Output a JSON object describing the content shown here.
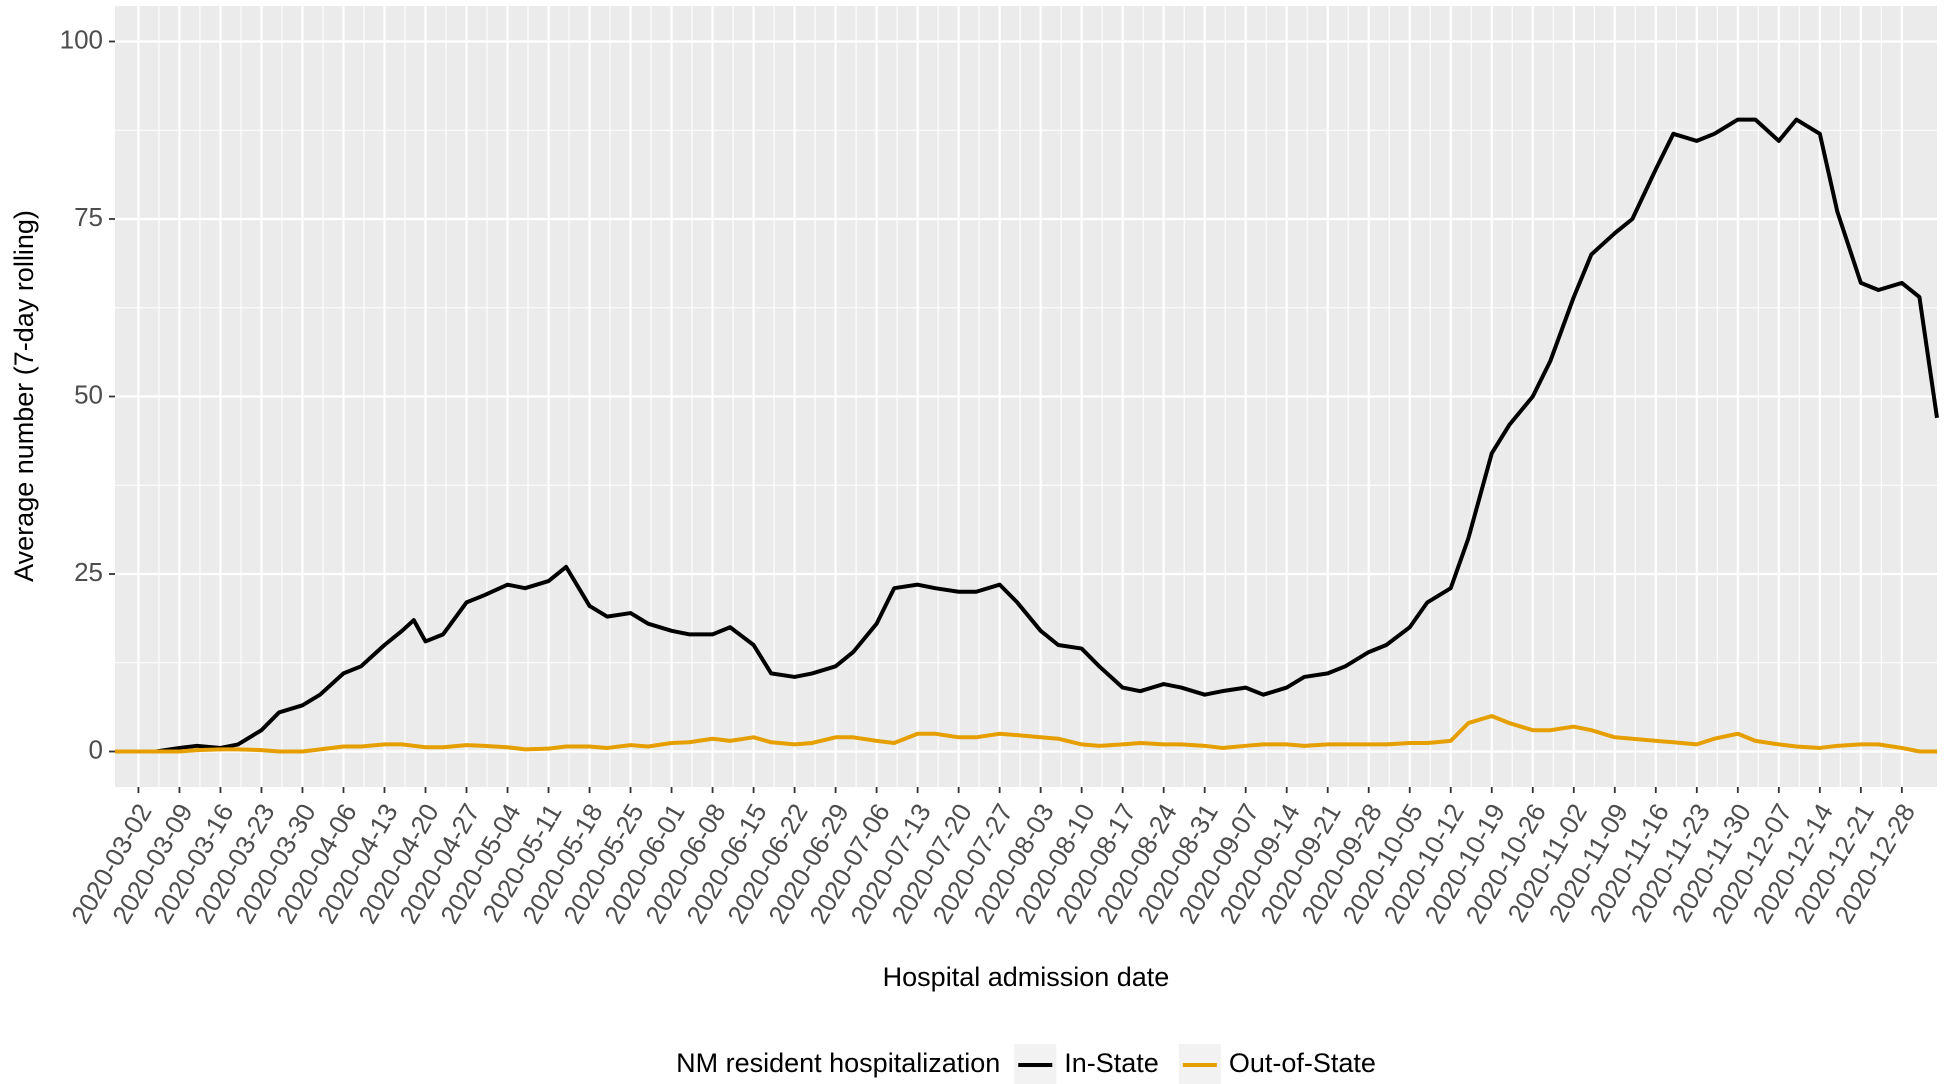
{
  "chart_data": {
    "type": "line",
    "x_label": "Hospital admission date",
    "y_label": "Average number (7-day rolling)",
    "legend_title": "NM resident hospitalization",
    "legend_position": "bottom",
    "grid": true,
    "xlim": [
      "2020-02-27",
      "2021-01-03"
    ],
    "ylim": [
      -5,
      105
    ],
    "yticks": [
      0,
      25,
      50,
      75,
      100
    ],
    "xticks": [
      "2020-03-02",
      "2020-03-09",
      "2020-03-16",
      "2020-03-23",
      "2020-03-30",
      "2020-04-06",
      "2020-04-13",
      "2020-04-20",
      "2020-04-27",
      "2020-05-04",
      "2020-05-11",
      "2020-05-18",
      "2020-05-25",
      "2020-06-01",
      "2020-06-08",
      "2020-06-15",
      "2020-06-22",
      "2020-06-29",
      "2020-07-06",
      "2020-07-13",
      "2020-07-20",
      "2020-07-27",
      "2020-08-03",
      "2020-08-10",
      "2020-08-17",
      "2020-08-24",
      "2020-08-31",
      "2020-09-07",
      "2020-09-14",
      "2020-09-21",
      "2020-09-28",
      "2020-10-05",
      "2020-10-12",
      "2020-10-19",
      "2020-10-26",
      "2020-11-02",
      "2020-11-09",
      "2020-11-16",
      "2020-11-23",
      "2020-11-30",
      "2020-12-07",
      "2020-12-14",
      "2020-12-21",
      "2020-12-28"
    ],
    "x": [
      "2020-02-27",
      "2020-03-02",
      "2020-03-05",
      "2020-03-09",
      "2020-03-12",
      "2020-03-16",
      "2020-03-19",
      "2020-03-23",
      "2020-03-26",
      "2020-03-30",
      "2020-04-02",
      "2020-04-06",
      "2020-04-09",
      "2020-04-13",
      "2020-04-16",
      "2020-04-18",
      "2020-04-20",
      "2020-04-23",
      "2020-04-27",
      "2020-04-30",
      "2020-05-04",
      "2020-05-07",
      "2020-05-11",
      "2020-05-14",
      "2020-05-18",
      "2020-05-21",
      "2020-05-25",
      "2020-05-28",
      "2020-06-01",
      "2020-06-04",
      "2020-06-08",
      "2020-06-11",
      "2020-06-15",
      "2020-06-18",
      "2020-06-22",
      "2020-06-25",
      "2020-06-29",
      "2020-07-02",
      "2020-07-06",
      "2020-07-09",
      "2020-07-13",
      "2020-07-16",
      "2020-07-20",
      "2020-07-23",
      "2020-07-27",
      "2020-07-30",
      "2020-08-03",
      "2020-08-06",
      "2020-08-10",
      "2020-08-13",
      "2020-08-17",
      "2020-08-20",
      "2020-08-24",
      "2020-08-27",
      "2020-08-31",
      "2020-09-03",
      "2020-09-07",
      "2020-09-10",
      "2020-09-14",
      "2020-09-17",
      "2020-09-21",
      "2020-09-24",
      "2020-09-28",
      "2020-10-01",
      "2020-10-05",
      "2020-10-08",
      "2020-10-12",
      "2020-10-15",
      "2020-10-19",
      "2020-10-22",
      "2020-10-26",
      "2020-10-29",
      "2020-11-02",
      "2020-11-05",
      "2020-11-09",
      "2020-11-12",
      "2020-11-16",
      "2020-11-19",
      "2020-11-23",
      "2020-11-26",
      "2020-11-30",
      "2020-12-03",
      "2020-12-07",
      "2020-12-10",
      "2020-12-14",
      "2020-12-17",
      "2020-12-21",
      "2020-12-24",
      "2020-12-28",
      "2020-12-31",
      "2021-01-03"
    ],
    "series": [
      {
        "name": "In-State",
        "color": "#000000",
        "values": [
          0,
          0,
          0,
          0.5,
          0.8,
          0.5,
          1,
          3,
          5.5,
          6.5,
          8,
          11,
          12,
          15,
          17,
          18.5,
          15.5,
          16.5,
          21,
          22,
          23.5,
          23,
          24,
          26,
          20.5,
          19,
          19.5,
          18,
          17,
          16.5,
          16.5,
          17.5,
          15,
          11,
          10.5,
          11,
          12,
          14,
          18,
          23,
          23.5,
          23,
          22.5,
          22.5,
          23.5,
          21,
          17,
          15,
          14.5,
          12,
          9,
          8.5,
          9.5,
          9,
          8,
          8.5,
          9,
          8,
          9,
          10.5,
          11,
          12,
          14,
          15,
          17.5,
          21,
          23,
          30,
          42,
          46,
          50,
          55,
          64,
          70,
          73,
          75,
          82,
          87,
          86,
          87,
          89,
          89,
          86,
          89,
          87,
          76,
          66,
          65,
          66,
          64,
          47
        ]
      },
      {
        "name": "Out-of-State",
        "color": "#E69F00",
        "values": [
          0,
          0,
          0,
          0,
          0.2,
          0.3,
          0.3,
          0.2,
          0,
          0,
          0.3,
          0.7,
          0.7,
          1,
          1,
          0.8,
          0.6,
          0.6,
          0.9,
          0.8,
          0.6,
          0.3,
          0.4,
          0.7,
          0.7,
          0.5,
          0.9,
          0.7,
          1.2,
          1.3,
          1.8,
          1.5,
          2,
          1.3,
          1,
          1.2,
          2,
          2,
          1.5,
          1.2,
          2.5,
          2.5,
          2,
          2,
          2.5,
          2.3,
          2,
          1.8,
          1,
          0.8,
          1,
          1.2,
          1,
          1,
          0.8,
          0.5,
          0.8,
          1,
          1,
          0.8,
          1,
          1,
          1,
          1,
          1.2,
          1.2,
          1.5,
          4,
          5,
          4,
          3,
          3,
          3.5,
          3,
          2,
          1.8,
          1.5,
          1.3,
          1,
          1.8,
          2.5,
          1.5,
          1,
          0.7,
          0.5,
          0.8,
          1,
          1,
          0.5,
          0,
          0
        ]
      }
    ]
  }
}
